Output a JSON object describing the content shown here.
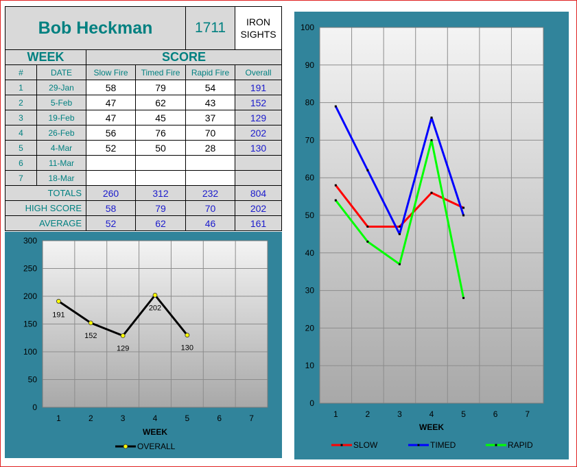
{
  "shooter": {
    "name": "Bob Heckman",
    "number": "1711",
    "category_line1": "IRON",
    "category_line2": "SIGHTS"
  },
  "headers": {
    "week": "WEEK",
    "score": "SCORE",
    "num": "#",
    "date": "DATE",
    "slow": "Slow Fire",
    "timed": "Timed Fire",
    "rapid": "Rapid Fire",
    "overall": "Overall"
  },
  "rows": [
    {
      "num": "1",
      "date": "29-Jan",
      "slow": "58",
      "timed": "79",
      "rapid": "54",
      "overall": "191"
    },
    {
      "num": "2",
      "date": "5-Feb",
      "slow": "47",
      "timed": "62",
      "rapid": "43",
      "overall": "152"
    },
    {
      "num": "3",
      "date": "19-Feb",
      "slow": "47",
      "timed": "45",
      "rapid": "37",
      "overall": "129"
    },
    {
      "num": "4",
      "date": "26-Feb",
      "slow": "56",
      "timed": "76",
      "rapid": "70",
      "overall": "202"
    },
    {
      "num": "5",
      "date": "4-Mar",
      "slow": "52",
      "timed": "50",
      "rapid": "28",
      "overall": "130"
    },
    {
      "num": "6",
      "date": "11-Mar",
      "slow": "",
      "timed": "",
      "rapid": "",
      "overall": ""
    },
    {
      "num": "7",
      "date": "18-Mar",
      "slow": "",
      "timed": "",
      "rapid": "",
      "overall": ""
    }
  ],
  "summary": [
    {
      "label": "TOTALS",
      "slow": "260",
      "timed": "312",
      "rapid": "232",
      "overall": "804"
    },
    {
      "label": "HIGH SCORE",
      "slow": "58",
      "timed": "79",
      "rapid": "70",
      "overall": "202"
    },
    {
      "label": "AVERAGE",
      "slow": "52",
      "timed": "62",
      "rapid": "46",
      "overall": "161"
    }
  ],
  "colors": {
    "teal": "#008080",
    "chart_bg": "#31849b",
    "slow": "#ff0000",
    "timed": "#0000ff",
    "rapid": "#00ff00",
    "overall": "#000000"
  },
  "chart_data": [
    {
      "type": "line",
      "categories": [
        "1",
        "2",
        "3",
        "4",
        "5",
        "6",
        "7"
      ],
      "series": [
        {
          "name": "OVERALL",
          "values": [
            191,
            152,
            129,
            202,
            130,
            null,
            null
          ]
        }
      ],
      "data_labels": [
        "191",
        "152",
        "129",
        "202",
        "130"
      ],
      "xlabel": "WEEK",
      "ylim": [
        0,
        300
      ],
      "yticks": [
        "0",
        "50",
        "100",
        "150",
        "200",
        "250",
        "300"
      ],
      "grid": true,
      "legend": "bottom"
    },
    {
      "type": "line",
      "categories": [
        "1",
        "2",
        "3",
        "4",
        "5",
        "6",
        "7"
      ],
      "series": [
        {
          "name": "SLOW",
          "values": [
            58,
            47,
            47,
            56,
            52,
            null,
            null
          ]
        },
        {
          "name": "TIMED",
          "values": [
            79,
            62,
            45,
            76,
            50,
            null,
            null
          ]
        },
        {
          "name": "RAPID",
          "values": [
            54,
            43,
            37,
            70,
            28,
            null,
            null
          ]
        }
      ],
      "xlabel": "WEEK",
      "ylim": [
        0,
        100
      ],
      "yticks": [
        "0",
        "10",
        "20",
        "30",
        "40",
        "50",
        "60",
        "70",
        "80",
        "90",
        "100"
      ],
      "grid": true,
      "legend": "bottom"
    }
  ]
}
